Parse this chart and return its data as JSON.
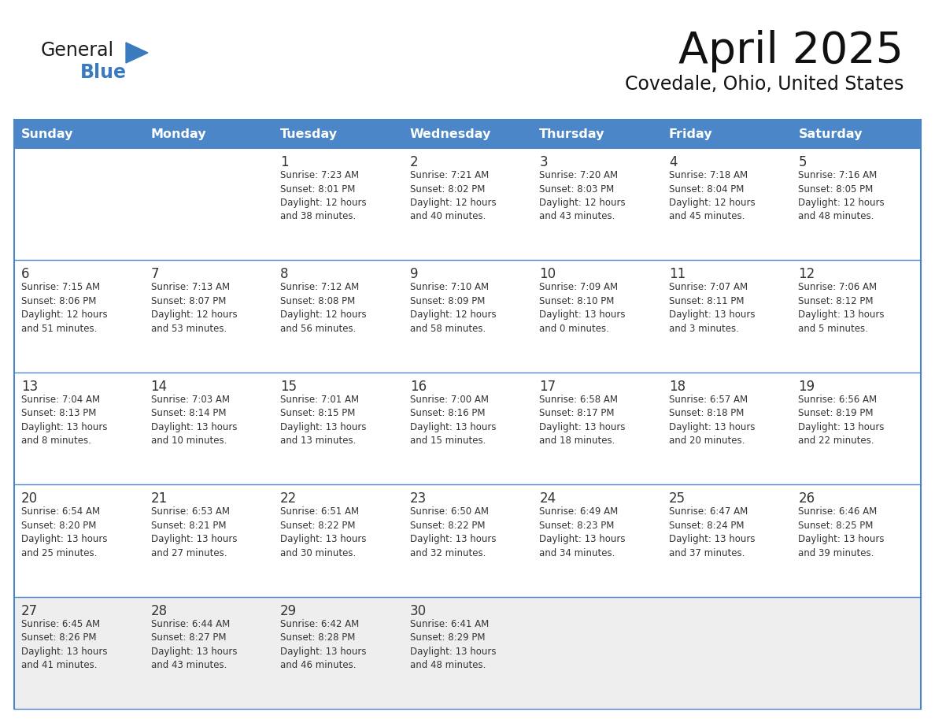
{
  "title": "April 2025",
  "subtitle": "Covedale, Ohio, United States",
  "header_color": "#4a86c8",
  "header_text_color": "#ffffff",
  "row_bg_white": "#ffffff",
  "row_bg_gray": "#eeeeee",
  "border_color": "#4a86c8",
  "text_color": "#333333",
  "day_number_color": "#333333",
  "day_headers": [
    "Sunday",
    "Monday",
    "Tuesday",
    "Wednesday",
    "Thursday",
    "Friday",
    "Saturday"
  ],
  "weeks": [
    [
      {
        "day": "",
        "info": ""
      },
      {
        "day": "",
        "info": ""
      },
      {
        "day": "1",
        "info": "Sunrise: 7:23 AM\nSunset: 8:01 PM\nDaylight: 12 hours\nand 38 minutes."
      },
      {
        "day": "2",
        "info": "Sunrise: 7:21 AM\nSunset: 8:02 PM\nDaylight: 12 hours\nand 40 minutes."
      },
      {
        "day": "3",
        "info": "Sunrise: 7:20 AM\nSunset: 8:03 PM\nDaylight: 12 hours\nand 43 minutes."
      },
      {
        "day": "4",
        "info": "Sunrise: 7:18 AM\nSunset: 8:04 PM\nDaylight: 12 hours\nand 45 minutes."
      },
      {
        "day": "5",
        "info": "Sunrise: 7:16 AM\nSunset: 8:05 PM\nDaylight: 12 hours\nand 48 minutes."
      }
    ],
    [
      {
        "day": "6",
        "info": "Sunrise: 7:15 AM\nSunset: 8:06 PM\nDaylight: 12 hours\nand 51 minutes."
      },
      {
        "day": "7",
        "info": "Sunrise: 7:13 AM\nSunset: 8:07 PM\nDaylight: 12 hours\nand 53 minutes."
      },
      {
        "day": "8",
        "info": "Sunrise: 7:12 AM\nSunset: 8:08 PM\nDaylight: 12 hours\nand 56 minutes."
      },
      {
        "day": "9",
        "info": "Sunrise: 7:10 AM\nSunset: 8:09 PM\nDaylight: 12 hours\nand 58 minutes."
      },
      {
        "day": "10",
        "info": "Sunrise: 7:09 AM\nSunset: 8:10 PM\nDaylight: 13 hours\nand 0 minutes."
      },
      {
        "day": "11",
        "info": "Sunrise: 7:07 AM\nSunset: 8:11 PM\nDaylight: 13 hours\nand 3 minutes."
      },
      {
        "day": "12",
        "info": "Sunrise: 7:06 AM\nSunset: 8:12 PM\nDaylight: 13 hours\nand 5 minutes."
      }
    ],
    [
      {
        "day": "13",
        "info": "Sunrise: 7:04 AM\nSunset: 8:13 PM\nDaylight: 13 hours\nand 8 minutes."
      },
      {
        "day": "14",
        "info": "Sunrise: 7:03 AM\nSunset: 8:14 PM\nDaylight: 13 hours\nand 10 minutes."
      },
      {
        "day": "15",
        "info": "Sunrise: 7:01 AM\nSunset: 8:15 PM\nDaylight: 13 hours\nand 13 minutes."
      },
      {
        "day": "16",
        "info": "Sunrise: 7:00 AM\nSunset: 8:16 PM\nDaylight: 13 hours\nand 15 minutes."
      },
      {
        "day": "17",
        "info": "Sunrise: 6:58 AM\nSunset: 8:17 PM\nDaylight: 13 hours\nand 18 minutes."
      },
      {
        "day": "18",
        "info": "Sunrise: 6:57 AM\nSunset: 8:18 PM\nDaylight: 13 hours\nand 20 minutes."
      },
      {
        "day": "19",
        "info": "Sunrise: 6:56 AM\nSunset: 8:19 PM\nDaylight: 13 hours\nand 22 minutes."
      }
    ],
    [
      {
        "day": "20",
        "info": "Sunrise: 6:54 AM\nSunset: 8:20 PM\nDaylight: 13 hours\nand 25 minutes."
      },
      {
        "day": "21",
        "info": "Sunrise: 6:53 AM\nSunset: 8:21 PM\nDaylight: 13 hours\nand 27 minutes."
      },
      {
        "day": "22",
        "info": "Sunrise: 6:51 AM\nSunset: 8:22 PM\nDaylight: 13 hours\nand 30 minutes."
      },
      {
        "day": "23",
        "info": "Sunrise: 6:50 AM\nSunset: 8:22 PM\nDaylight: 13 hours\nand 32 minutes."
      },
      {
        "day": "24",
        "info": "Sunrise: 6:49 AM\nSunset: 8:23 PM\nDaylight: 13 hours\nand 34 minutes."
      },
      {
        "day": "25",
        "info": "Sunrise: 6:47 AM\nSunset: 8:24 PM\nDaylight: 13 hours\nand 37 minutes."
      },
      {
        "day": "26",
        "info": "Sunrise: 6:46 AM\nSunset: 8:25 PM\nDaylight: 13 hours\nand 39 minutes."
      }
    ],
    [
      {
        "day": "27",
        "info": "Sunrise: 6:45 AM\nSunset: 8:26 PM\nDaylight: 13 hours\nand 41 minutes."
      },
      {
        "day": "28",
        "info": "Sunrise: 6:44 AM\nSunset: 8:27 PM\nDaylight: 13 hours\nand 43 minutes."
      },
      {
        "day": "29",
        "info": "Sunrise: 6:42 AM\nSunset: 8:28 PM\nDaylight: 13 hours\nand 46 minutes."
      },
      {
        "day": "30",
        "info": "Sunrise: 6:41 AM\nSunset: 8:29 PM\nDaylight: 13 hours\nand 48 minutes."
      },
      {
        "day": "",
        "info": ""
      },
      {
        "day": "",
        "info": ""
      },
      {
        "day": "",
        "info": ""
      }
    ]
  ],
  "logo_general_color": "#1a1a1a",
  "logo_blue_color": "#3a7abf",
  "fig_width": 11.88,
  "fig_height": 9.18
}
